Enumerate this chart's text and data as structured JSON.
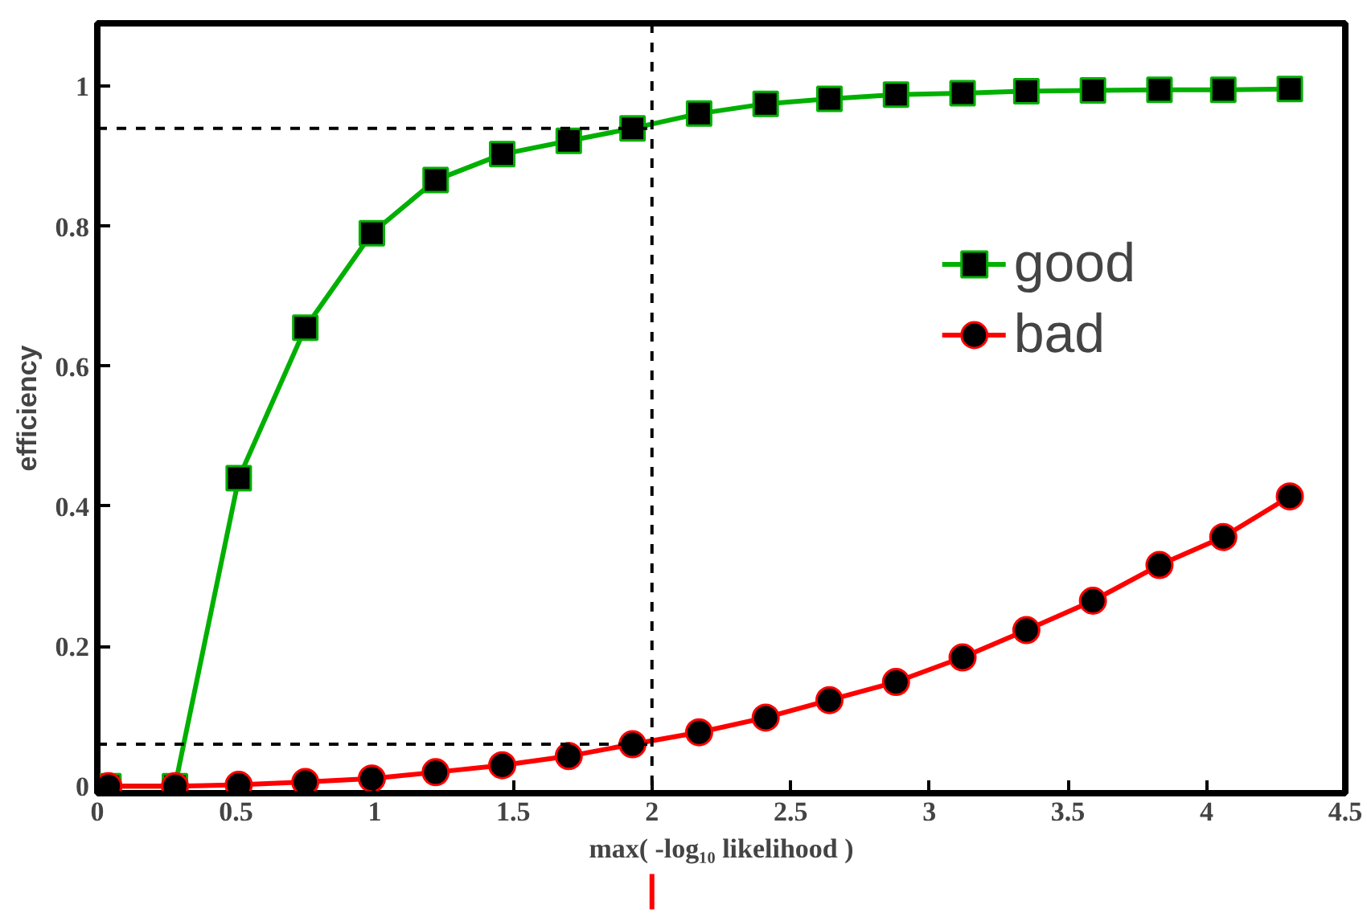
{
  "chart_data": {
    "type": "line",
    "xlabel": "max( -log₁₀ likelihood )",
    "ylabel": "efficiency",
    "x": [
      0.04,
      0.28,
      0.51,
      0.75,
      0.99,
      1.22,
      1.46,
      1.7,
      1.93,
      2.17,
      2.41,
      2.64,
      2.88,
      3.12,
      3.35,
      3.59,
      3.83,
      4.06,
      4.3
    ],
    "series": [
      {
        "name": "good",
        "color": "#00b000",
        "marker": "square",
        "values": [
          0,
          0,
          0.44,
          0.655,
          0.79,
          0.866,
          0.903,
          0.922,
          0.94,
          0.961,
          0.975,
          0.982,
          0.988,
          0.99,
          0.993,
          0.994,
          0.995,
          0.995,
          0.996
        ]
      },
      {
        "name": "bad",
        "color": "#ff0000",
        "marker": "circle",
        "values": [
          0,
          0,
          0.002,
          0.006,
          0.011,
          0.02,
          0.03,
          0.043,
          0.06,
          0.077,
          0.098,
          0.123,
          0.149,
          0.184,
          0.223,
          0.265,
          0.316,
          0.356,
          0.414
        ]
      }
    ],
    "xlim": [
      0,
      4.5
    ],
    "ylim": [
      -0.01,
      1.09
    ],
    "xticks": [
      0,
      0.5,
      1,
      1.5,
      2,
      2.5,
      3,
      3.5,
      4,
      4.5
    ],
    "yticks": [
      0,
      0.2,
      0.4,
      0.6,
      0.8,
      1
    ],
    "ref_lines": [
      {
        "axis": "x",
        "value": 2,
        "line_style": "dashed",
        "color": "#000000"
      },
      {
        "axis": "y",
        "value": 0.94,
        "line_style": "dashed",
        "color": "#000000"
      },
      {
        "axis": "y",
        "value": 0.06,
        "line_style": "dashed",
        "color": "#000000"
      }
    ],
    "grid": false,
    "legend": "top right",
    "line_style": "solid"
  }
}
